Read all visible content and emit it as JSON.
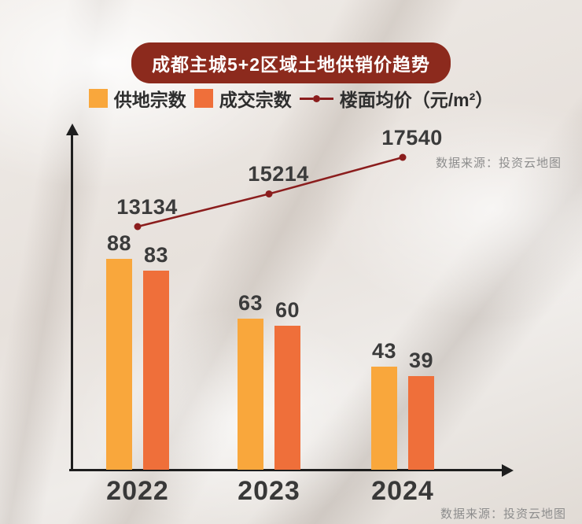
{
  "title": "成都主城5+2区域土地供销价趋势",
  "title_bg_color": "#8c2a1d",
  "watermark": "数据来源：投资云地图",
  "legend": [
    {
      "label": "供地宗数",
      "type": "square",
      "color": "#f9a73c"
    },
    {
      "label": "成交宗数",
      "type": "square",
      "color": "#ef6f3a"
    },
    {
      "label": "楼面均价（元/m²）",
      "type": "line",
      "color": "#8b1d1d"
    }
  ],
  "chart_data": {
    "type": "bar+line",
    "title": "成都主城5+2区域土地供销价趋势",
    "categories": [
      "2022",
      "2023",
      "2024"
    ],
    "series": [
      {
        "name": "供地宗数",
        "type": "bar",
        "color": "#f9a73c",
        "values": [
          88,
          63,
          43
        ]
      },
      {
        "name": "成交宗数",
        "type": "bar",
        "color": "#ef6f3a",
        "values": [
          83,
          60,
          39
        ]
      },
      {
        "name": "楼面均价（元/m²）",
        "type": "line",
        "color": "#8b1d1d",
        "values": [
          13134,
          15214,
          17540
        ]
      }
    ],
    "ylim_bars": [
      0,
      100
    ],
    "grid": false,
    "legend_position": "top",
    "source_note": "数据来源：投资云地图"
  }
}
